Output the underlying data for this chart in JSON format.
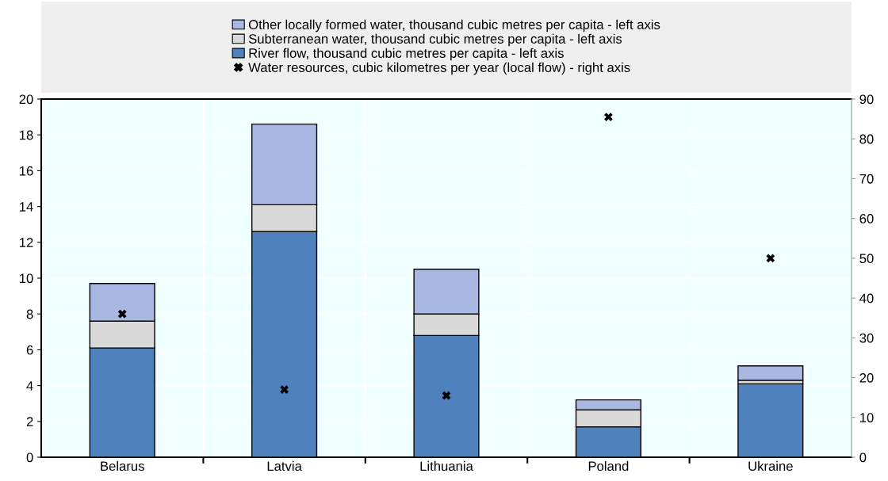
{
  "chart_data": {
    "type": "bar",
    "stacked": true,
    "categories": [
      "Belarus",
      "Latvia",
      "Lithuania",
      "Poland",
      "Ukraine"
    ],
    "series": [
      {
        "name": "River flow, thousand cubic metres per capita - left axis",
        "color": "#4f81bd",
        "values": [
          6.1,
          12.6,
          6.8,
          1.7,
          4.1
        ]
      },
      {
        "name": "Subterranean water, thousand cubic metres per capita - left axis",
        "color": "#d9d9d9",
        "values": [
          1.5,
          1.5,
          1.2,
          0.95,
          0.2
        ]
      },
      {
        "name": "Other locally formed water, thousand cubic metres per capita - left axis",
        "color": "#a9b8e2",
        "values": [
          2.1,
          4.5,
          2.5,
          0.55,
          0.8
        ]
      },
      {
        "name": "Water resources, cubic kilometres per year (local flow) - right axis",
        "type": "scatter",
        "axis": "y2",
        "marker": "cross",
        "color": "#000000",
        "values": [
          36,
          17,
          15.5,
          85.5,
          50
        ]
      }
    ],
    "ylim": [
      0,
      20
    ],
    "yticks": [
      0,
      2,
      4,
      6,
      8,
      10,
      12,
      14,
      16,
      18,
      20
    ],
    "y2lim": [
      0,
      90
    ],
    "y2ticks": [
      0,
      10,
      20,
      30,
      40,
      50,
      60,
      70,
      80,
      90
    ],
    "grid": true,
    "legend": "top"
  }
}
